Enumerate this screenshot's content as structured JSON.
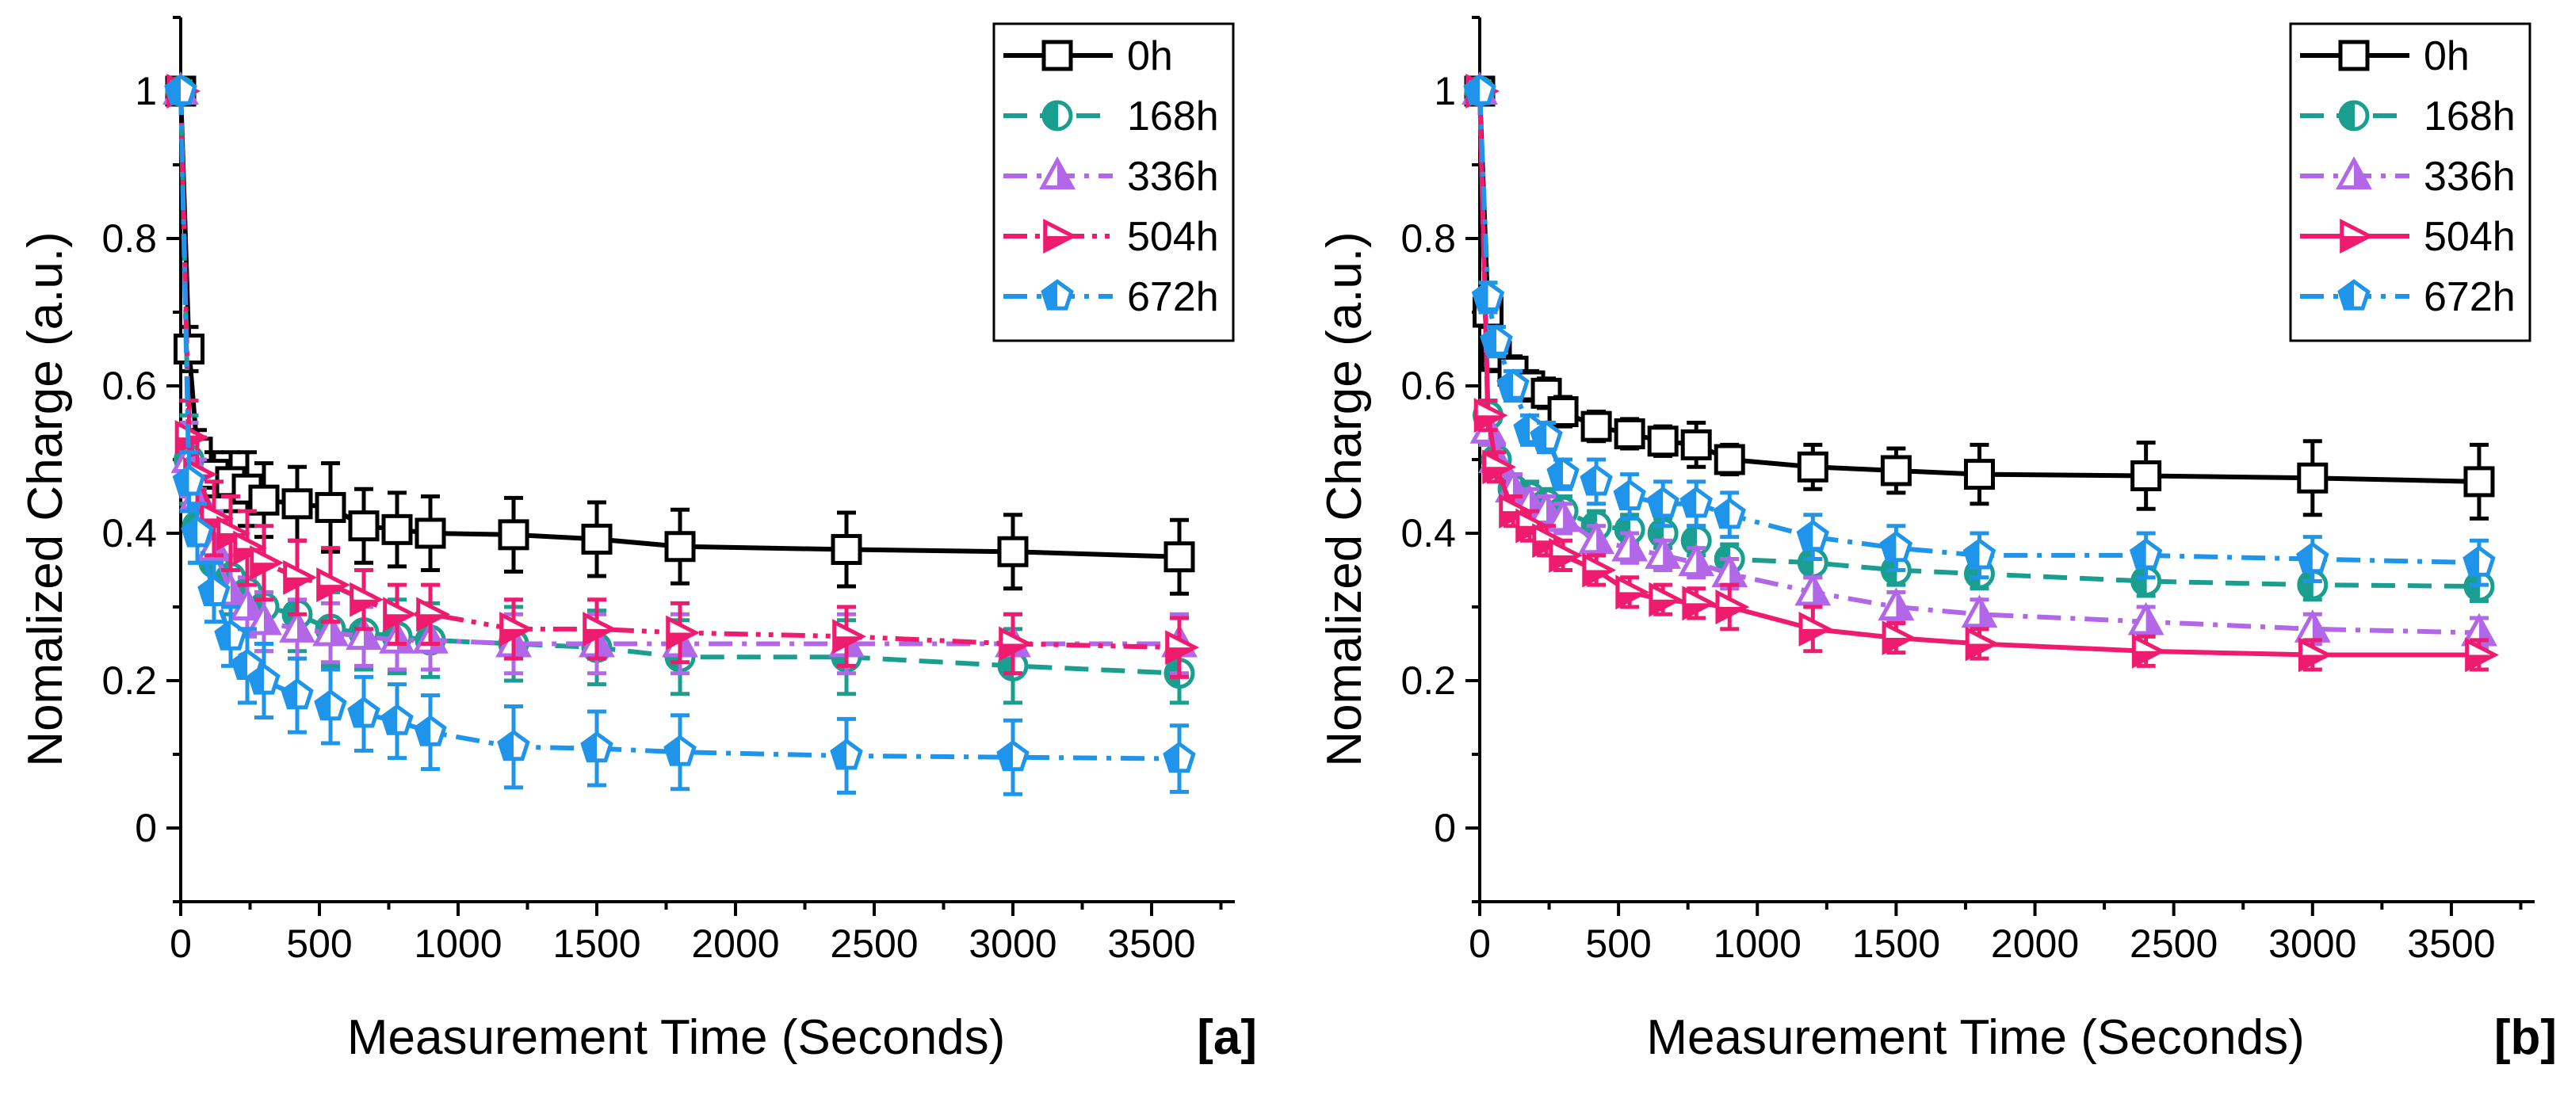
{
  "chart_data": [
    {
      "type": "line",
      "panel_label": "[a]",
      "title": "",
      "xlabel": "Measurement Time (Seconds)",
      "ylabel": "Nomalized Charge (a.u.)",
      "xlim": [
        0,
        3800
      ],
      "ylim": [
        -0.1,
        1.1
      ],
      "x_ticks": [
        0,
        500,
        1000,
        1500,
        2000,
        2500,
        3000,
        3500
      ],
      "y_ticks": [
        0,
        0.2,
        0.4,
        0.6,
        0.8,
        1
      ],
      "x_tick_labels": [
        "0",
        "500",
        "1000",
        "1500",
        "2000",
        "2500",
        "3000",
        "3500"
      ],
      "y_tick_labels": [
        "0",
        "0.2",
        "0.4",
        "0.6",
        "0.8",
        "1"
      ],
      "legend_position": "top-right",
      "x": [
        0,
        30,
        60,
        120,
        180,
        240,
        300,
        420,
        540,
        660,
        780,
        900,
        1200,
        1500,
        1800,
        2400,
        3000,
        3600
      ],
      "series": [
        {
          "name": "0h",
          "color": "#000000",
          "marker": "square",
          "dash": "solid",
          "values": [
            1.0,
            0.65,
            0.51,
            0.48,
            0.47,
            0.46,
            0.445,
            0.44,
            0.435,
            0.41,
            0.405,
            0.4,
            0.398,
            0.392,
            0.382,
            0.378,
            0.375,
            0.368
          ],
          "errors": [
            0,
            0.03,
            0.03,
            0.03,
            0.04,
            0.05,
            0.05,
            0.05,
            0.06,
            0.05,
            0.05,
            0.05,
            0.05,
            0.05,
            0.05,
            0.05,
            0.05,
            0.05
          ]
        },
        {
          "name": "168h",
          "color": "#1a9e8f",
          "marker": "half-circle",
          "dash": "dash",
          "values": [
            1.0,
            0.5,
            0.41,
            0.36,
            0.34,
            0.32,
            0.3,
            0.29,
            0.27,
            0.265,
            0.26,
            0.255,
            0.25,
            0.245,
            0.232,
            0.232,
            0.22,
            0.21
          ],
          "errors": [
            0,
            0.06,
            0.05,
            0.05,
            0.05,
            0.05,
            0.06,
            0.05,
            0.05,
            0.05,
            0.05,
            0.05,
            0.05,
            0.05,
            0.05,
            0.05,
            0.05,
            0.04
          ]
        },
        {
          "name": "336h",
          "color": "#b266e8",
          "marker": "triangle",
          "dash": "dashdot",
          "values": [
            1.0,
            0.5,
            0.45,
            0.38,
            0.32,
            0.3,
            0.28,
            0.27,
            0.265,
            0.26,
            0.255,
            0.255,
            0.25,
            0.25,
            0.25,
            0.25,
            0.25,
            0.25
          ],
          "errors": [
            0,
            0.05,
            0.05,
            0.05,
            0.05,
            0.04,
            0.04,
            0.04,
            0.04,
            0.04,
            0.04,
            0.04,
            0.04,
            0.04,
            0.04,
            0.04,
            0.04,
            0.04
          ]
        },
        {
          "name": "504h",
          "color": "#ee1b6e",
          "marker": "right-triangle",
          "dash": "dashdotdot",
          "values": [
            1.0,
            0.53,
            0.48,
            0.42,
            0.4,
            0.38,
            0.36,
            0.34,
            0.33,
            0.31,
            0.29,
            0.29,
            0.27,
            0.27,
            0.265,
            0.26,
            0.25,
            0.245
          ],
          "errors": [
            0,
            0.05,
            0.05,
            0.05,
            0.05,
            0.05,
            0.05,
            0.05,
            0.05,
            0.04,
            0.04,
            0.04,
            0.04,
            0.04,
            0.04,
            0.04,
            0.04,
            0.04
          ]
        },
        {
          "name": "672h",
          "color": "#1e95ea",
          "marker": "pentagon",
          "dash": "dashdot",
          "values": [
            1.0,
            0.47,
            0.4,
            0.32,
            0.26,
            0.22,
            0.2,
            0.18,
            0.165,
            0.155,
            0.145,
            0.13,
            0.11,
            0.108,
            0.103,
            0.098,
            0.096,
            0.094
          ],
          "errors": [
            0,
            0.04,
            0.04,
            0.04,
            0.04,
            0.05,
            0.05,
            0.05,
            0.05,
            0.05,
            0.05,
            0.05,
            0.055,
            0.05,
            0.05,
            0.05,
            0.05,
            0.045
          ]
        }
      ]
    },
    {
      "type": "line",
      "panel_label": "[b]",
      "title": "",
      "xlabel": "Measurement Time (Seconds)",
      "ylabel": "Nomalized Charge (a.u.)",
      "xlim": [
        0,
        3800
      ],
      "ylim": [
        -0.1,
        1.1
      ],
      "x_ticks": [
        0,
        500,
        1000,
        1500,
        2000,
        2500,
        3000,
        3500
      ],
      "y_ticks": [
        0,
        0.2,
        0.4,
        0.6,
        0.8,
        1
      ],
      "x_tick_labels": [
        "0",
        "500",
        "1000",
        "1500",
        "2000",
        "2500",
        "3000",
        "3500"
      ],
      "y_tick_labels": [
        "0",
        "0.2",
        "0.4",
        "0.6",
        "0.8",
        "1"
      ],
      "legend_position": "top-right",
      "x": [
        0,
        30,
        60,
        120,
        180,
        240,
        300,
        420,
        540,
        660,
        780,
        900,
        1200,
        1500,
        1800,
        2400,
        3000,
        3600
      ],
      "series": [
        {
          "name": "0h",
          "color": "#000000",
          "marker": "square",
          "dash": "solid",
          "values": [
            1.0,
            0.7,
            0.64,
            0.62,
            0.6,
            0.59,
            0.565,
            0.545,
            0.535,
            0.525,
            0.52,
            0.5,
            0.49,
            0.485,
            0.48,
            0.478,
            0.475,
            0.47
          ],
          "errors": [
            0,
            0.02,
            0.02,
            0.02,
            0.02,
            0.02,
            0.02,
            0.02,
            0.02,
            0.02,
            0.03,
            0.02,
            0.03,
            0.03,
            0.04,
            0.045,
            0.05,
            0.05
          ]
        },
        {
          "name": "168h",
          "color": "#1a9e8f",
          "marker": "half-circle",
          "dash": "dash",
          "values": [
            1.0,
            0.56,
            0.5,
            0.46,
            0.45,
            0.44,
            0.43,
            0.41,
            0.405,
            0.4,
            0.39,
            0.365,
            0.36,
            0.35,
            0.345,
            0.335,
            0.33,
            0.328
          ],
          "errors": [
            0,
            0.02,
            0.02,
            0.02,
            0.02,
            0.02,
            0.02,
            0.02,
            0.02,
            0.02,
            0.02,
            0.02,
            0.02,
            0.02,
            0.02,
            0.02,
            0.02,
            0.02
          ]
        },
        {
          "name": "336h",
          "color": "#b266e8",
          "marker": "triangle",
          "dash": "dashdot",
          "values": [
            1.0,
            0.54,
            0.5,
            0.46,
            0.44,
            0.43,
            0.42,
            0.39,
            0.38,
            0.37,
            0.36,
            0.345,
            0.32,
            0.3,
            0.29,
            0.28,
            0.27,
            0.265
          ],
          "errors": [
            0,
            0.02,
            0.02,
            0.02,
            0.02,
            0.02,
            0.02,
            0.02,
            0.02,
            0.02,
            0.02,
            0.02,
            0.02,
            0.02,
            0.02,
            0.02,
            0.02,
            0.02
          ]
        },
        {
          "name": "504h",
          "color": "#ee1b6e",
          "marker": "right-triangle",
          "dash": "solid",
          "values": [
            1.0,
            0.56,
            0.49,
            0.43,
            0.41,
            0.39,
            0.37,
            0.35,
            0.32,
            0.31,
            0.305,
            0.3,
            0.27,
            0.258,
            0.25,
            0.24,
            0.235,
            0.235
          ],
          "errors": [
            0,
            0.02,
            0.02,
            0.02,
            0.02,
            0.02,
            0.02,
            0.02,
            0.02,
            0.02,
            0.02,
            0.03,
            0.03,
            0.02,
            0.02,
            0.02,
            0.02,
            0.02
          ]
        },
        {
          "name": "672h",
          "color": "#1e95ea",
          "marker": "pentagon",
          "dash": "dashdot",
          "values": [
            1.0,
            0.72,
            0.66,
            0.6,
            0.54,
            0.53,
            0.48,
            0.47,
            0.45,
            0.44,
            0.44,
            0.425,
            0.395,
            0.38,
            0.37,
            0.37,
            0.365,
            0.36
          ],
          "errors": [
            0,
            0.02,
            0.02,
            0.02,
            0.02,
            0.02,
            0.02,
            0.03,
            0.03,
            0.03,
            0.03,
            0.03,
            0.03,
            0.03,
            0.03,
            0.03,
            0.03,
            0.03
          ]
        }
      ]
    }
  ]
}
